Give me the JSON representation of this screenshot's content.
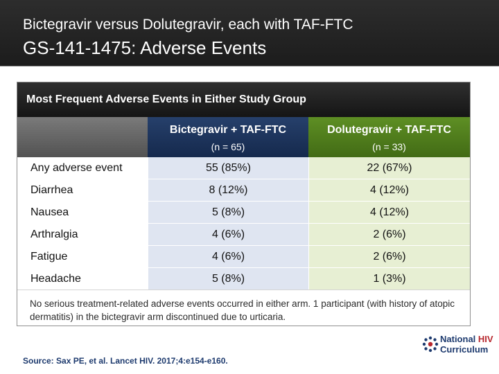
{
  "header": {
    "subtitle": "Bictegravir versus Dolutegravir, each with TAF-FTC",
    "title": "GS-141-1475: Adverse Events"
  },
  "table": {
    "title": "Most Frequent Adverse Events in Either Study Group",
    "columns": [
      {
        "name": "Bictegravir + TAF-FTC",
        "n": "(n = 65)",
        "color": "#1d355e"
      },
      {
        "name": "Dolutegravir + TAF-FTC",
        "n": "(n = 33)",
        "color": "#507d1c"
      }
    ],
    "rows": [
      {
        "label": "Any adverse event",
        "bic": "55 (85%)",
        "dol": "22 (67%)"
      },
      {
        "label": "Diarrhea",
        "bic": "8 (12%)",
        "dol": "4 (12%)"
      },
      {
        "label": "Nausea",
        "bic": "5 (8%)",
        "dol": "4 (12%)"
      },
      {
        "label": "Arthralgia",
        "bic": "4 (6%)",
        "dol": "2 (6%)"
      },
      {
        "label": "Fatigue",
        "bic": "4 (6%)",
        "dol": "2 (6%)"
      },
      {
        "label": "Headache",
        "bic": "5 (8%)",
        "dol": "1 (3%)"
      }
    ],
    "footnote": "No serious treatment-related adverse events occurred in either arm. 1 participant (with history of atopic dermatitis) in the bictegravir arm discontinued due to urticaria."
  },
  "source": "Source: Sax PE, et al. Lancet HIV. 2017;4:e154-e160.",
  "logo": {
    "line1_a": "National ",
    "line1_b": "HIV",
    "line2": "Curriculum",
    "icon": "national-hiv-curriculum-logo-icon"
  }
}
